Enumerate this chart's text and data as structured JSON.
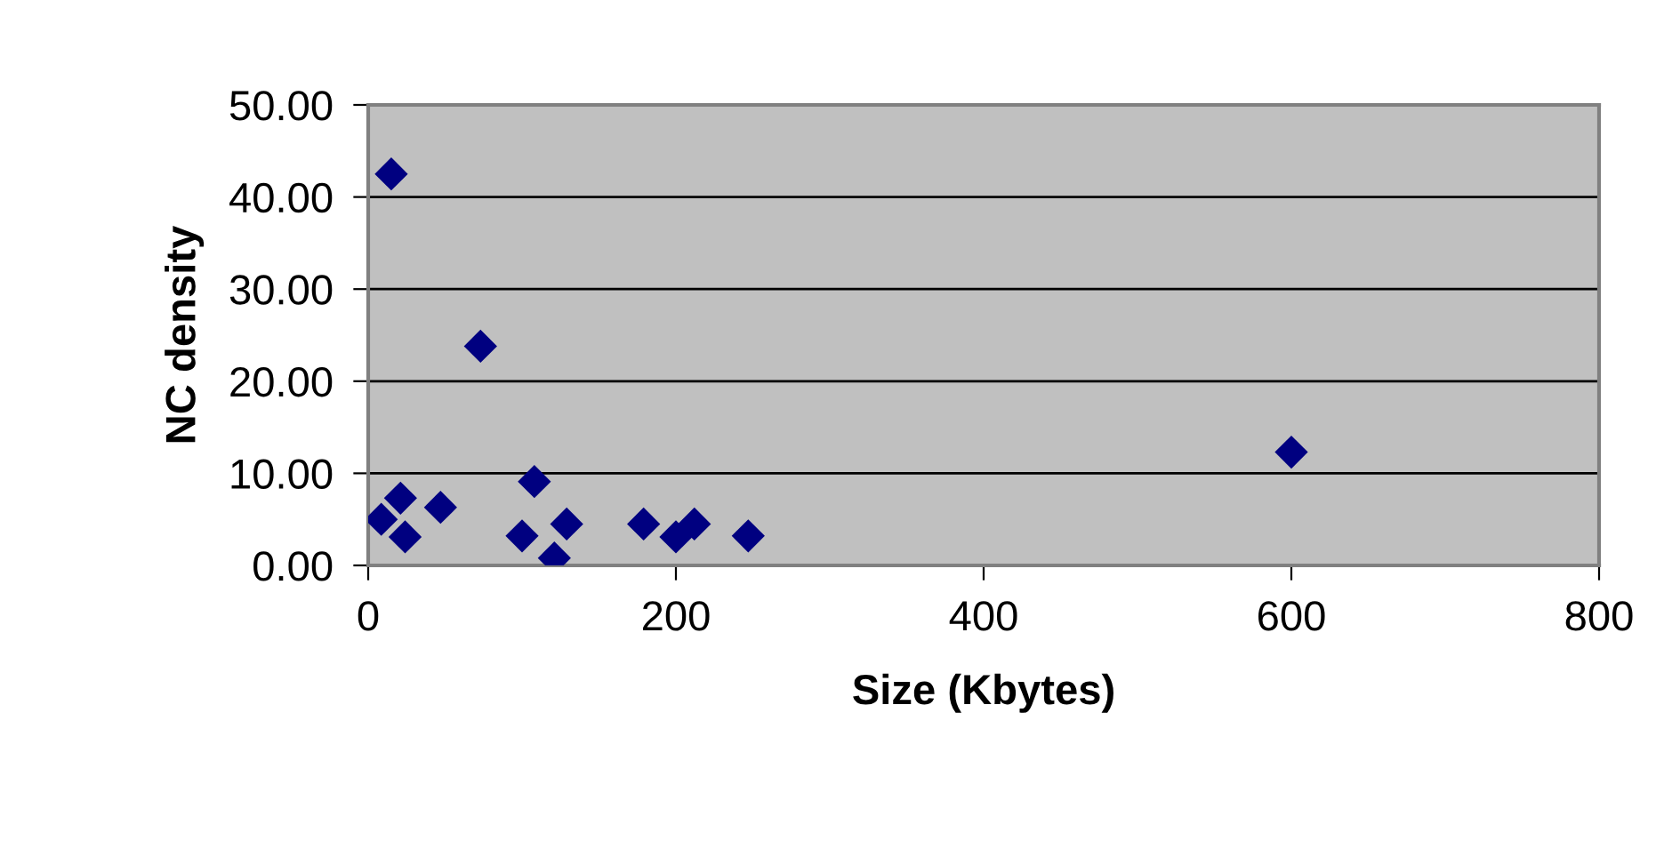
{
  "chart_data": {
    "type": "scatter",
    "xlabel": "Size (Kbytes)",
    "ylabel": "NC density",
    "x": [
      15,
      73,
      8.5,
      21,
      24,
      47,
      108,
      100,
      129,
      121,
      179,
      200,
      212,
      247,
      600
    ],
    "series": [
      {
        "color": "#000080",
        "values": [
          42.5,
          23.8,
          5.0,
          7.3,
          3.1,
          6.3,
          9.1,
          3.2,
          4.5,
          0.8,
          4.5,
          3.1,
          4.5,
          3.2,
          12.3
        ]
      }
    ],
    "xlim": [
      0,
      800
    ],
    "xticks": [
      0,
      200,
      400,
      600,
      800
    ],
    "ylim": [
      0,
      50
    ],
    "yticks": [
      {
        "value": 0,
        "label": "0.00"
      },
      {
        "value": 10,
        "label": "10.00"
      },
      {
        "value": 20,
        "label": "20.00"
      },
      {
        "value": 30,
        "label": "30.00"
      },
      {
        "value": 40,
        "label": "40.00"
      },
      {
        "value": 50,
        "label": "50.00"
      }
    ],
    "grid": "y",
    "marker": "diamond"
  }
}
